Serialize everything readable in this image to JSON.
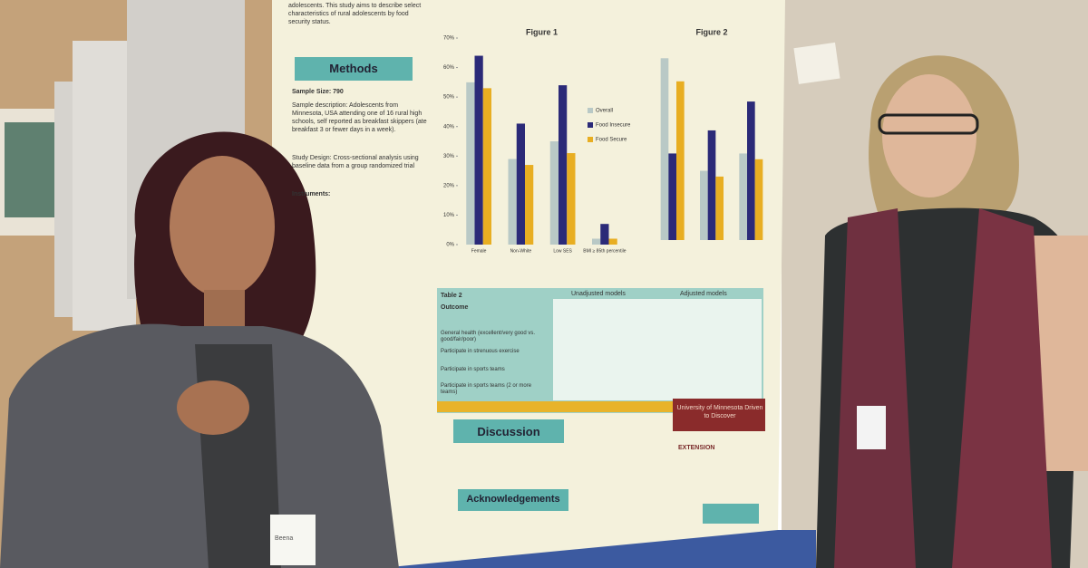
{
  "poster": {
    "intro": "adolescents. This study aims to describe select characteristics of rural adolescents by food security status.",
    "methods": {
      "heading": "Methods",
      "sample_size": "Sample Size: 790",
      "sample_description": "Sample description: Adolescents from Minnesota, USA attending one of 16 rural high schools, self reported as breakfast skippers (ate breakfast 3 or fewer days in a week).",
      "study_design": "Study Design: Cross-sectional analysis using baseline data from a group randomized trial",
      "instruments": "Instruments:"
    },
    "figure1": {
      "title": "Figure 1",
      "categories": [
        "Female",
        "Non-White",
        "Low SES",
        "BMI ≥ 85th percentile"
      ],
      "ylim": [
        0,
        70
      ],
      "yticks": [
        {
          "value": 0,
          "label": "0%"
        },
        {
          "value": 10,
          "label": "10%"
        },
        {
          "value": 20,
          "label": "20%"
        },
        {
          "value": 30,
          "label": "30%"
        },
        {
          "value": 40,
          "label": "40%"
        },
        {
          "value": 50,
          "label": "50%"
        },
        {
          "value": 60,
          "label": "60%"
        },
        {
          "value": 70,
          "label": "70%"
        }
      ],
      "series": [
        {
          "name": "Overall",
          "color": "#b9c9c6",
          "values": [
            55,
            29,
            35,
            2
          ]
        },
        {
          "name": "Food Insecure",
          "color": "#2b2a78",
          "values": [
            64,
            41,
            54,
            7
          ]
        },
        {
          "name": "Food Secure",
          "color": "#e8ae22",
          "values": [
            53,
            27,
            31,
            2
          ]
        }
      ]
    },
    "figure2": {
      "title": "Figure 2",
      "categories": [
        null,
        null,
        null
      ],
      "ylim": [
        0,
        70
      ],
      "series": [
        {
          "color": "#b9c9c6",
          "values": [
            63,
            24,
            30
          ]
        },
        {
          "color": "#2b2a78",
          "values": [
            30,
            38,
            48
          ]
        },
        {
          "color": "#e8ae22",
          "values": [
            55,
            22,
            28
          ]
        }
      ]
    },
    "table": {
      "title": "Table 2",
      "outcome": "Outcome",
      "unadjusted": "Unadjusted models",
      "adjusted": "Adjusted models",
      "rows": [
        "General health (excellent/very good vs. good/fair/poor)",
        "Participate in strenuous exercise",
        "Participate in sports teams",
        "Participate in sports teams (2 or more teams)"
      ]
    },
    "discussion": "Discussion",
    "acknowledgements": "Acknowledgements",
    "university": "University of Minnesota Driven to Discover",
    "extension": "EXTENSION"
  },
  "badge": "Beena"
}
